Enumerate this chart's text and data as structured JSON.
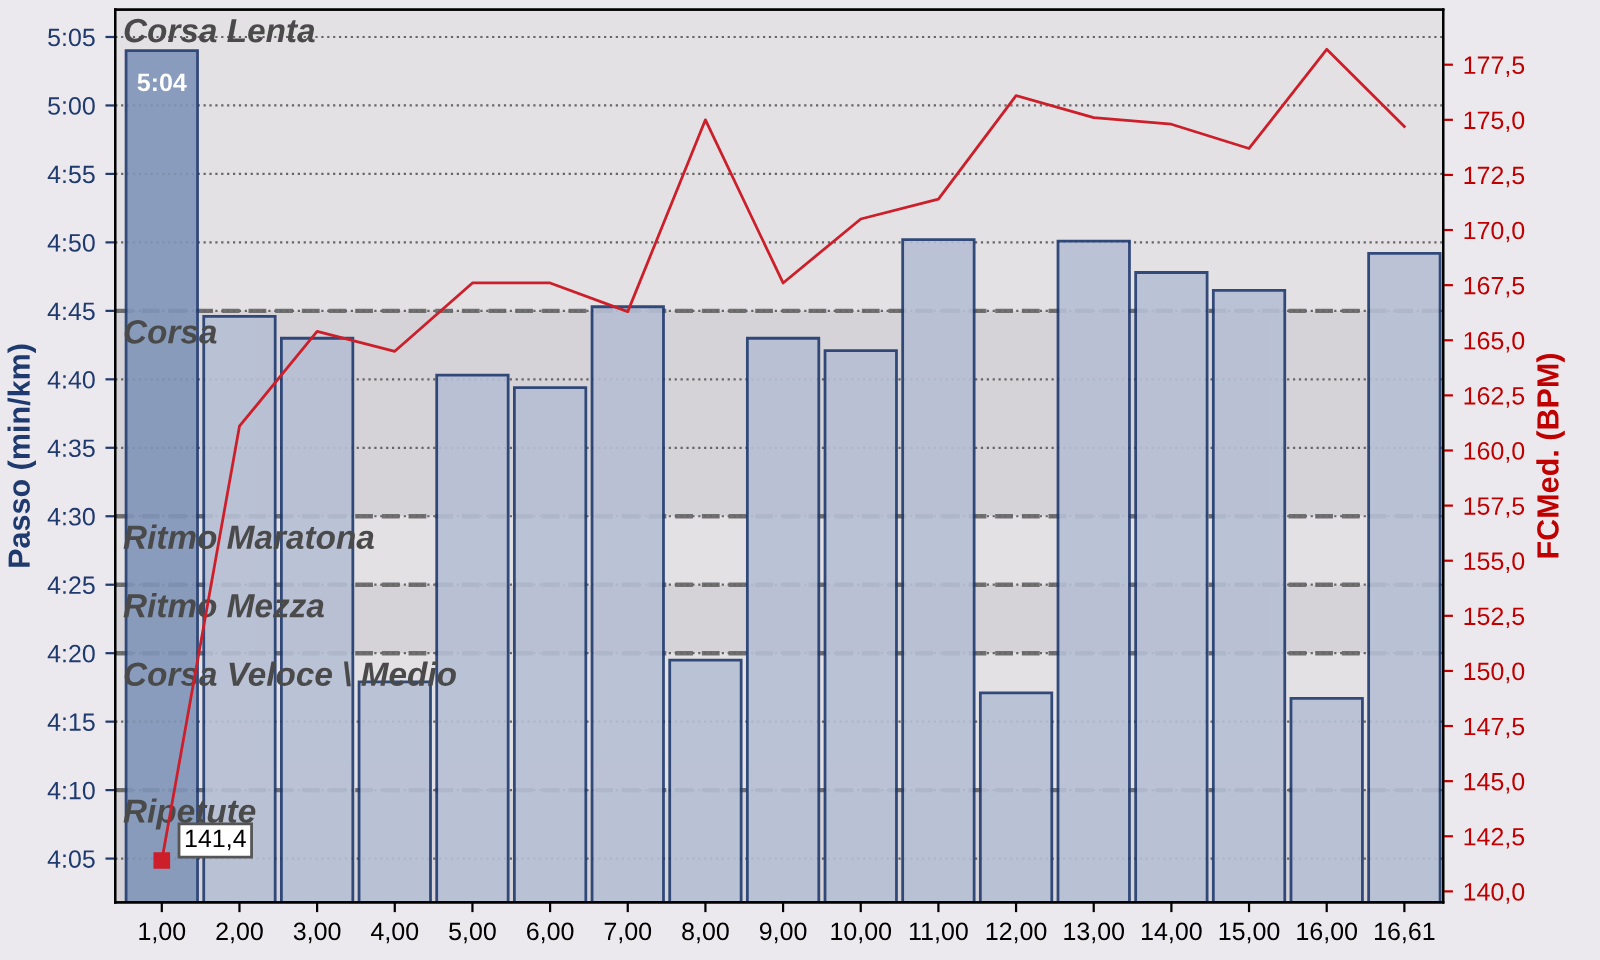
{
  "chart_data": {
    "type": "bar",
    "categories": [
      "1,00",
      "2,00",
      "3,00",
      "4,00",
      "5,00",
      "6,00",
      "7,00",
      "8,00",
      "9,00",
      "10,00",
      "11,00",
      "12,00",
      "13,00",
      "14,00",
      "15,00",
      "16,00",
      "16,61"
    ],
    "ylabel": "Passo (min/km)",
    "y2label": "FCMed. (BPM)",
    "series": [
      {
        "colors": [
          "#8095b8",
          "#b6bfd4",
          "#b6bfd4",
          "#b6bfd4",
          "#b6bfd4",
          "#b6bfd4",
          "#b6bfd4",
          "#b6bfd4",
          "#b6bfd4",
          "#b6bfd4",
          "#b6bfd4",
          "#b6bfd4",
          "#b6bfd4",
          "#b6bfd4",
          "#b6bfd4",
          "#b6bfd4",
          "#b6bfd4"
        ],
        "values": [
          304,
          284.6,
          283,
          257.9,
          280.3,
          279.4,
          285.3,
          259.5,
          283,
          282.1,
          290.2,
          257.1,
          290.1,
          287.8,
          286.5,
          256.7,
          289.2
        ],
        "value_labels": [
          "5:04",
          null,
          null,
          null,
          null,
          null,
          null,
          null,
          null,
          null,
          null,
          null,
          null,
          null,
          null,
          null,
          null
        ]
      },
      {
        "type": "line",
        "axis": "y2",
        "color": "#cc1f2a",
        "values": [
          141.4,
          161.1,
          165.4,
          164.5,
          167.6,
          167.6,
          166.3,
          175.0,
          167.6,
          170.5,
          171.4,
          176.1,
          175.1,
          174.8,
          173.7,
          178.2,
          174.7
        ],
        "value_labels": [
          "141,4",
          null,
          null,
          null,
          null,
          null,
          null,
          null,
          null,
          null,
          null,
          null,
          null,
          null,
          null,
          null,
          null
        ]
      }
    ],
    "ylim": [
      241.8,
      307
    ],
    "yticks": [
      {
        "value": 245,
        "label": "4:05"
      },
      {
        "value": 250,
        "label": "4:10"
      },
      {
        "value": 255,
        "label": "4:15"
      },
      {
        "value": 260,
        "label": "4:20"
      },
      {
        "value": 265,
        "label": "4:25"
      },
      {
        "value": 270,
        "label": "4:30"
      },
      {
        "value": 275,
        "label": "4:35"
      },
      {
        "value": 280,
        "label": "4:40"
      },
      {
        "value": 285,
        "label": "4:45"
      },
      {
        "value": 290,
        "label": "4:50"
      },
      {
        "value": 295,
        "label": "4:55"
      },
      {
        "value": 300,
        "label": "5:00"
      },
      {
        "value": 305,
        "label": "5:05"
      }
    ],
    "y2lim": [
      139.5,
      180.0
    ],
    "y2ticks": [
      {
        "value": 140,
        "label": "140,0"
      },
      {
        "value": 142.5,
        "label": "142,5"
      },
      {
        "value": 145,
        "label": "145,0"
      },
      {
        "value": 147.5,
        "label": "147,5"
      },
      {
        "value": 150,
        "label": "150,0"
      },
      {
        "value": 152.5,
        "label": "152,5"
      },
      {
        "value": 155,
        "label": "155,0"
      },
      {
        "value": 157.5,
        "label": "157,5"
      },
      {
        "value": 160,
        "label": "160,0"
      },
      {
        "value": 162.5,
        "label": "162,5"
      },
      {
        "value": 165,
        "label": "165,0"
      },
      {
        "value": 167.5,
        "label": "167,5"
      },
      {
        "value": 170,
        "label": "170,0"
      },
      {
        "value": 172.5,
        "label": "172,5"
      },
      {
        "value": 175,
        "label": "175,0"
      },
      {
        "value": 177.5,
        "label": "177,5"
      }
    ],
    "grid": "y",
    "bands": [
      {
        "axis": "y",
        "from": 285,
        "to": 307,
        "label": "Corsa Lenta",
        "color": "#e4e1e5"
      },
      {
        "axis": "y",
        "from": 270,
        "to": 285,
        "label": "Corsa",
        "color": "#d6d3d8"
      },
      {
        "axis": "y",
        "from": 265,
        "to": 270,
        "label": "Ritmo Maratona",
        "color": "#e4e1e5"
      },
      {
        "axis": "y",
        "from": 260,
        "to": 265,
        "label": "Ritmo Mezza",
        "color": "#d6d3d8"
      },
      {
        "axis": "y",
        "from": 250,
        "to": 260,
        "label": "Corsa Veloce \\ Medio",
        "color": "#e4e1e5"
      },
      {
        "axis": "y",
        "from": 241.8,
        "to": 250,
        "label": "Ripetute",
        "color": "#d6d3d8"
      }
    ]
  }
}
